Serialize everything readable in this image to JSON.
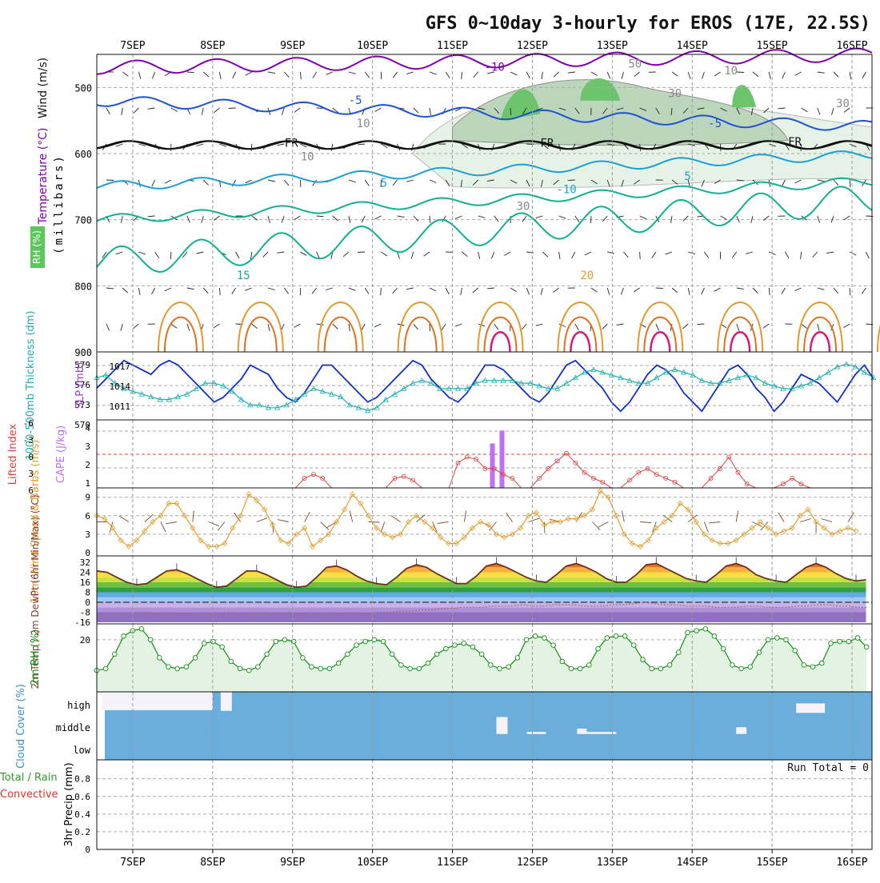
{
  "title": "GFS 0~10day 3-hourly for EROS (17E, 22.5S)",
  "run_total": "Run Total = 0",
  "date_labels": [
    "7SEP",
    "8SEP",
    "9SEP",
    "10SEP",
    "11SEP",
    "12SEP",
    "13SEP",
    "14SEP",
    "15SEP",
    "16SEP"
  ],
  "colors": {
    "temp_purple": "#8000b0",
    "temp_blue": "#1e50d8",
    "temp_cyan": "#1aa0d8",
    "temp_teal": "#10b090",
    "temp_orange": "#e09a30",
    "temp_dkorange": "#e07020",
    "temp_magenta": "#d81878",
    "slp": "#1030c8",
    "thick": "#20b0b0",
    "lifted": "#e04040",
    "cape": "#c070f0",
    "wind": "#e0a030",
    "rh": "#109010",
    "cloud": "#6aaedb"
  },
  "chart_data": [
    {
      "type": "line",
      "panel": "upper_air",
      "ylabel": "(millibars)",
      "side_labels": [
        "Wind (m/s)",
        "Temperature (°C)",
        "RH (%)"
      ],
      "ylim": [
        900,
        450
      ],
      "y_ticks": [
        500,
        600,
        700,
        800,
        900
      ],
      "contour_labels": [
        {
          "text": "-10",
          "day": 11.4,
          "p": 475
        },
        {
          "text": "-5",
          "day": 9.7,
          "p": 525
        },
        {
          "text": "-5",
          "day": 14.2,
          "p": 560
        },
        {
          "text": "FR",
          "day": 8.9,
          "p": 590
        },
        {
          "text": "FR",
          "day": 12.1,
          "p": 590
        },
        {
          "text": "FR",
          "day": 15.2,
          "p": 588
        },
        {
          "text": "5",
          "day": 10.1,
          "p": 650
        },
        {
          "text": "5",
          "day": 13.9,
          "p": 640
        },
        {
          "text": "-10",
          "day": 12.3,
          "p": 660
        },
        {
          "text": "15",
          "day": 8.3,
          "p": 790
        },
        {
          "text": "20",
          "day": 12.6,
          "p": 790
        },
        {
          "text": "30",
          "day": 13.7,
          "p": 515
        },
        {
          "text": "30",
          "day": 15.8,
          "p": 530
        },
        {
          "text": "10",
          "day": 9.8,
          "p": 560
        },
        {
          "text": "10",
          "day": 9.1,
          "p": 610
        },
        {
          "text": "10",
          "day": 14.4,
          "p": 480
        },
        {
          "text": "30",
          "day": 11.8,
          "p": 685
        },
        {
          "text": "50",
          "day": 13.2,
          "p": 470
        }
      ]
    },
    {
      "type": "line",
      "panel": "slp_thickness",
      "ylabel_left": "1000-500mb Thickness (dm)",
      "ylabel_right": "SLP (mb)",
      "left_ticks": [
        "579",
        "576",
        "573",
        "570"
      ],
      "right_ticks": [
        "1017",
        "1014",
        "1011"
      ],
      "series": [
        {
          "name": "SLP",
          "values": [
            1014,
            1016,
            1018,
            1020,
            1019,
            1018,
            1017,
            1019,
            1020,
            1019,
            1017,
            1015,
            1013,
            1011,
            1012,
            1014,
            1016,
            1019,
            1018,
            1017,
            1014,
            1012,
            1011,
            1013,
            1016,
            1019,
            1019,
            1017,
            1015,
            1013,
            1011,
            1012,
            1014,
            1016,
            1018,
            1020,
            1019,
            1016,
            1014,
            1012,
            1011,
            1013,
            1016,
            1019,
            1019,
            1018,
            1016,
            1014,
            1012,
            1011,
            1013,
            1016,
            1019,
            1020,
            1018,
            1016,
            1014,
            1011,
            1009,
            1011,
            1014,
            1017,
            1019,
            1018,
            1016,
            1013,
            1011,
            1009,
            1012,
            1015,
            1018,
            1019,
            1017,
            1014,
            1012,
            1009,
            1011,
            1014,
            1017,
            1016,
            1015,
            1013,
            1011,
            1014,
            1017,
            1019,
            1016
          ]
        },
        {
          "name": "Thickness",
          "values": [
            576,
            576.5,
            575,
            574,
            573.5,
            573,
            572.5,
            572,
            572,
            572.5,
            573,
            574,
            575,
            575,
            574.5,
            573.5,
            572,
            571,
            571,
            570.5,
            570.5,
            571,
            572,
            573,
            574,
            573.5,
            573,
            572.5,
            571,
            570.5,
            570,
            570.5,
            572,
            573,
            574,
            575,
            575.5,
            575,
            574,
            574,
            574,
            574,
            575,
            575.5,
            575.5,
            575.5,
            575.5,
            575,
            575,
            574.5,
            574,
            574,
            575,
            576,
            577,
            577.5,
            577,
            576.5,
            576,
            575.5,
            575,
            575,
            576,
            577,
            577.5,
            577,
            576.5,
            575.5,
            575,
            575,
            575.5,
            576,
            576.5,
            576,
            575,
            574.5,
            574,
            574,
            574.5,
            575,
            576,
            577,
            578,
            578.5,
            578,
            577,
            576
          ]
        }
      ]
    },
    {
      "type": "bar",
      "panel": "cape_lifted",
      "ylabel_left": "Lifted Index",
      "ylabel_right": "CAPE (J/kg)",
      "left_ticks": [
        "-6",
        "-3",
        "0",
        "3",
        "6"
      ],
      "right_ticks": [
        "4",
        "3",
        "2",
        "1"
      ],
      "cape_bars": [
        {
          "day": 11.5,
          "value": 3.1
        },
        {
          "day": 11.62,
          "value": 4.0
        }
      ],
      "lifted_index_values": [
        1,
        1,
        1,
        1,
        1,
        1,
        1,
        1,
        1,
        1,
        1,
        1,
        1,
        1,
        1,
        1,
        1,
        1,
        1,
        1,
        1,
        1,
        1,
        1.5,
        1.7,
        1.5,
        1,
        1,
        1,
        1,
        1,
        1,
        1,
        1.5,
        1.6,
        1.4,
        1,
        1,
        1,
        1,
        2.3,
        2.6,
        2.5,
        2.0,
        2.0,
        1.7,
        1.5,
        1,
        1,
        1.5,
        2.0,
        2.4,
        2.8,
        2.3,
        1.8,
        1.5,
        1.3,
        1,
        1,
        1.4,
        1.8,
        2.0,
        1.7,
        1.5,
        1.3,
        1,
        1,
        1,
        1.5,
        2.0,
        2.6,
        1.8,
        1.2,
        1,
        1,
        1,
        1.2,
        1.5,
        1.2,
        1,
        1,
        1,
        1,
        1,
        1,
        1
      ]
    },
    {
      "type": "line",
      "panel": "wind10m",
      "ylabel": "10m Wind Speed & Barbs (m/s)",
      "y_ticks": [
        "9",
        "6",
        "3",
        "0"
      ],
      "series": [
        {
          "name": "Wind Speed",
          "values": [
            6,
            5.5,
            4,
            2,
            1,
            2,
            3.5,
            5,
            6,
            8,
            8,
            6,
            4,
            2,
            1,
            1,
            1.5,
            4,
            6,
            9.5,
            8.5,
            7,
            4.5,
            2,
            1.5,
            3,
            4,
            1,
            2,
            3,
            5,
            7,
            9.5,
            8,
            6,
            4,
            3,
            2.5,
            3,
            5,
            6,
            5,
            4,
            2.5,
            1.5,
            1.5,
            2.5,
            4,
            5,
            4.5,
            3,
            2.5,
            3,
            4,
            6,
            6.5,
            4.5,
            5,
            5,
            5.5,
            5.5,
            6,
            7,
            10,
            9,
            6,
            3,
            1.5,
            1,
            2,
            4,
            5,
            6,
            8,
            7,
            5,
            3,
            2,
            1.5,
            1.5,
            2,
            3,
            4,
            5,
            4,
            3,
            3.5,
            4,
            6,
            7,
            5,
            4,
            3,
            3.5,
            4,
            3.5
          ]
        }
      ]
    },
    {
      "type": "area",
      "panel": "temp2m",
      "ylabel": "2m Temp / 2m DewPt (6hr Min/Max) (°C)",
      "y_ticks": [
        "32",
        "24",
        "16",
        "8",
        "0",
        "-8",
        "-16"
      ],
      "series": [
        {
          "name": "Temperature",
          "values": [
            25,
            24,
            20,
            16,
            14,
            15,
            20,
            25,
            26,
            23,
            19,
            15,
            12,
            13,
            19,
            25,
            25,
            22,
            18,
            14,
            12,
            13,
            20,
            28,
            29,
            26,
            21,
            17,
            15,
            14,
            20,
            27,
            30,
            28,
            23,
            19,
            15,
            15,
            21,
            29,
            31,
            28,
            24,
            20,
            17,
            16,
            22,
            29,
            31,
            28,
            24,
            19,
            16,
            16,
            22,
            30,
            31,
            27,
            23,
            19,
            17,
            16,
            22,
            29,
            31,
            28,
            22,
            19,
            17,
            16,
            22,
            28,
            31,
            28,
            23,
            19,
            17,
            18
          ]
        },
        {
          "name": "Dew Point",
          "values": [
            -12,
            -11,
            -10,
            -9,
            -8,
            -8,
            -9,
            -10,
            -9,
            -9,
            -10,
            -10,
            -9,
            -8,
            -9,
            -10,
            -10,
            -10,
            -9,
            -8,
            -9,
            -10,
            -10,
            -9,
            -9,
            -8,
            -9,
            -9,
            -8,
            -8,
            -7,
            -7,
            -6,
            -6,
            -5,
            -5,
            -4,
            -4,
            -4,
            -3,
            -3,
            -3,
            -2,
            -3,
            -3,
            -2,
            -2,
            -2,
            -3,
            -3,
            -3,
            -2,
            -2,
            -1,
            0,
            -1,
            -2,
            -2,
            -3,
            -3,
            -3,
            -4,
            -4,
            -4,
            -3,
            -3,
            -4,
            -4,
            -4,
            -3,
            -3,
            -2,
            -2,
            -3,
            -3,
            -4,
            -4
          ]
        }
      ]
    },
    {
      "type": "line",
      "panel": "rh2m",
      "ylabel": "2m RH (%)",
      "y_ticks": [
        "20"
      ],
      "series": [
        {
          "name": "RH",
          "values": [
            3,
            4,
            12,
            22,
            25,
            26,
            20,
            10,
            5,
            4,
            5,
            10,
            18,
            19,
            16,
            8,
            4,
            3,
            5,
            12,
            19,
            20,
            19,
            10,
            5,
            4,
            4,
            7,
            12,
            17,
            19,
            20,
            19,
            12,
            6,
            4,
            4,
            7,
            12,
            15,
            17,
            18,
            16,
            12,
            6,
            4,
            5,
            10,
            20,
            22,
            21,
            17,
            8,
            4,
            4,
            6,
            15,
            21,
            22,
            22,
            17,
            9,
            4,
            4,
            6,
            13,
            24,
            25,
            26,
            22,
            15,
            6,
            4,
            5,
            13,
            20,
            21,
            20,
            14,
            6,
            5,
            7,
            18,
            19,
            19,
            21,
            16
          ]
        }
      ]
    },
    {
      "type": "bar",
      "panel": "cloud",
      "ylabel": "Cloud Cover (%)",
      "y_ticks": [
        "high",
        "middle",
        "low"
      ],
      "gaps": [
        {
          "from": 6.55,
          "to": 6.62,
          "top_frac": 0.05
        },
        {
          "from": 6.62,
          "to": 8.0,
          "top_frac": 0.27
        },
        {
          "from": 8.1,
          "to": 8.24,
          "top_frac": 0.28
        },
        {
          "from": 11.55,
          "to": 11.69,
          "level": "middle",
          "depth": 0.25
        },
        {
          "from": 11.93,
          "to": 12.17,
          "level": "middle",
          "depth": 0.03
        },
        {
          "from": 12.56,
          "to": 12.68,
          "level": "middle",
          "depth": 0.08
        },
        {
          "from": 12.68,
          "to": 13.05,
          "level": "middle",
          "depth": 0.03
        },
        {
          "from": 14.55,
          "to": 14.68,
          "level": "middle",
          "depth": 0.1
        },
        {
          "from": 15.3,
          "to": 15.66,
          "level": "high",
          "depth": 0.14
        }
      ]
    },
    {
      "type": "bar",
      "panel": "precip",
      "ylabel": "3hr Precip (mm)",
      "side_labels": [
        "Total / Rain",
        "Convective"
      ],
      "y_ticks": [
        "0.8",
        "0.6",
        "0.4",
        "0.2",
        "0"
      ],
      "ylim": [
        0,
        1
      ],
      "values": []
    }
  ]
}
